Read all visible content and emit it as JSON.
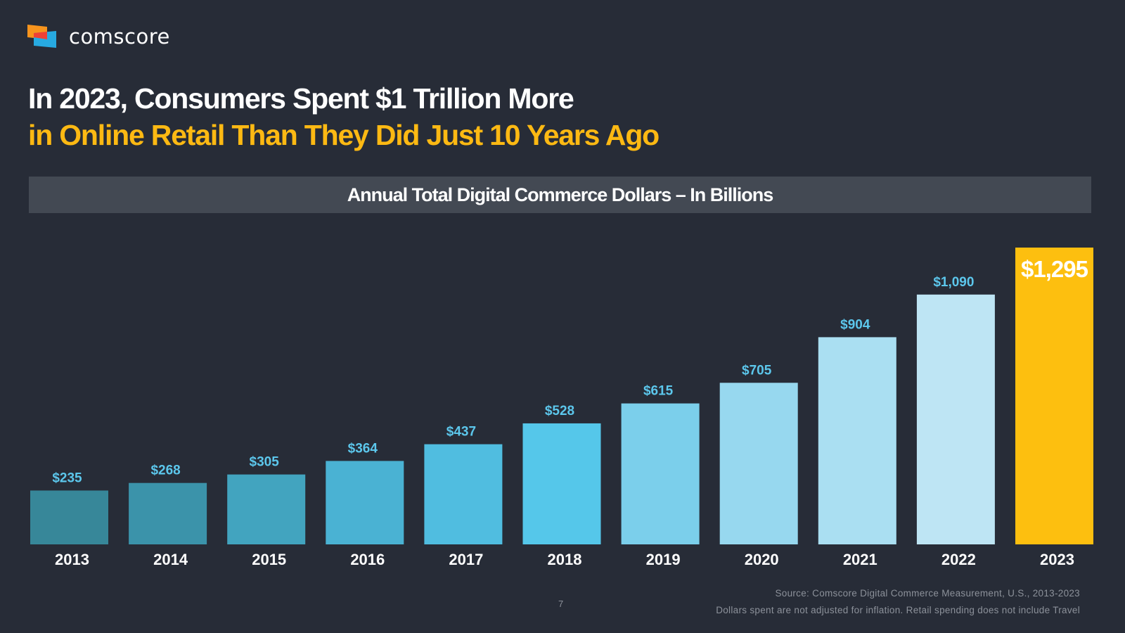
{
  "brand": {
    "name": "comscore",
    "colors": {
      "background": "#272c37",
      "banner": "#434953",
      "accent": "#fdb913",
      "label_blue": "#5cc7ec",
      "logo_orange": "#f7941d",
      "logo_red": "#ef4136",
      "logo_cyan": "#27aae1"
    }
  },
  "headline": {
    "line1": "In 2023, Consumers Spent $1 Trillion More",
    "line2": "in Online Retail Than They Did Just 10 Years Ago"
  },
  "chart_data": {
    "type": "bar",
    "title": "Annual Total Digital Commerce Dollars – In Billions",
    "categories": [
      "2013",
      "2014",
      "2015",
      "2016",
      "2017",
      "2018",
      "2019",
      "2020",
      "2021",
      "2022",
      "2023"
    ],
    "values": [
      235,
      268,
      305,
      364,
      437,
      528,
      615,
      705,
      904,
      1090,
      1295
    ],
    "value_labels": [
      "$235",
      "$268",
      "$305",
      "$364",
      "$437",
      "$528",
      "$615",
      "$705",
      "$904",
      "$1,090",
      "$1,295"
    ],
    "bar_colors": [
      "#378799",
      "#3b93aa",
      "#42a4bf",
      "#4ab2d3",
      "#50bde0",
      "#55c7ea",
      "#7bcfeb",
      "#97d8ef",
      "#aadff2",
      "#bee5f4",
      "#fdbf0f"
    ],
    "highlight_index": 10,
    "xlabel": "",
    "ylabel": "",
    "ylim": [
      0,
      1295
    ],
    "grid": false,
    "legend": "none"
  },
  "footer": {
    "source": "Source: Comscore Digital Commerce Measurement, U.S., 2013-2023",
    "note": "Dollars spent are not adjusted for inflation. Retail spending does not include Travel",
    "page_number": "7"
  }
}
